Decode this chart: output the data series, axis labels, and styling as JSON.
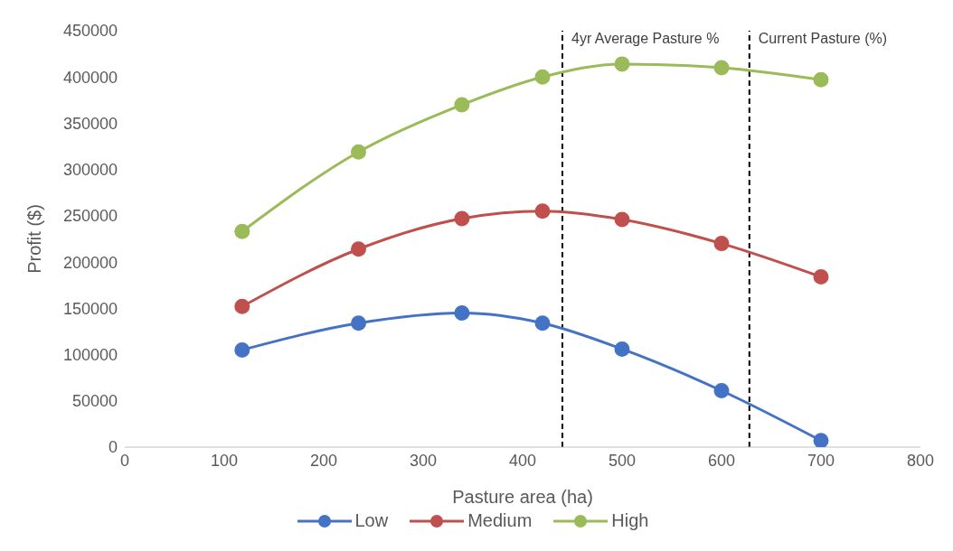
{
  "chart_data": {
    "type": "line",
    "xlabel": "Pasture area (ha)",
    "ylabel": "Profit ($)",
    "x": [
      118,
      235,
      339,
      420,
      500,
      600,
      700
    ],
    "series": [
      {
        "name": "Low",
        "color": "#4472c4",
        "values": [
          105000,
          134000,
          145000,
          134000,
          106000,
          61000,
          7000
        ]
      },
      {
        "name": "Medium",
        "color": "#c0504d",
        "values": [
          152000,
          214000,
          247000,
          255000,
          246000,
          220000,
          184000
        ]
      },
      {
        "name": "High",
        "color": "#9bbb59",
        "values": [
          233000,
          319000,
          370000,
          400000,
          414000,
          410000,
          397000
        ]
      }
    ],
    "xlim": [
      0,
      800
    ],
    "xticks": [
      0,
      100,
      200,
      300,
      400,
      500,
      600,
      700,
      800
    ],
    "ylim": [
      0,
      450000
    ],
    "yticks": [
      0,
      50000,
      100000,
      150000,
      200000,
      250000,
      300000,
      350000,
      400000,
      450000
    ],
    "ref_lines": [
      {
        "axis": "x",
        "value": 440,
        "label": "4yr Average Pasture %",
        "color": "#000000",
        "line_style": "dashed"
      },
      {
        "axis": "x",
        "value": 628,
        "label": "Current Pasture (%)",
        "color": "#000000",
        "line_style": "dashed"
      }
    ],
    "grid": false,
    "legend": "bottom",
    "marker": "circle",
    "line_style": "solid"
  }
}
